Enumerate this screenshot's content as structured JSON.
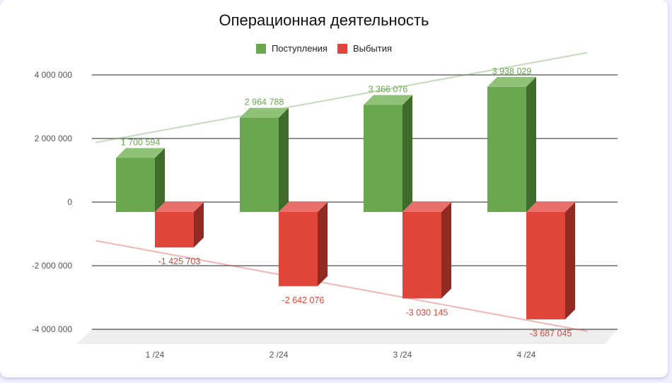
{
  "chart_data": {
    "type": "bar",
    "title": "Операционная деятельность",
    "legend_position": "top",
    "categories": [
      "1 /24",
      "2 /24",
      "3 /24",
      "4 /24"
    ],
    "series": [
      {
        "name": "Поступления",
        "color": "#6aa84f",
        "side_color": "#3f6b2b",
        "top_color": "#8fc276",
        "values": [
          1700594,
          2964788,
          3366076,
          3938029
        ],
        "labels": [
          "1 700 594",
          "2 964 788",
          "3 366 076",
          "3 938 029"
        ]
      },
      {
        "name": "Выбытия",
        "color": "#e0453a",
        "side_color": "#922a24",
        "top_color": "#e9706a",
        "values": [
          -1425703,
          -2642076,
          -3030145,
          -3687045
        ],
        "labels": [
          "-1 425 703",
          "-2 642 076",
          "-3 030 145",
          "-3 687 045"
        ]
      }
    ],
    "y_ticks": [
      {
        "value": 4000000,
        "label": "4 000 000"
      },
      {
        "value": 2000000,
        "label": "2 000 000"
      },
      {
        "value": 0,
        "label": "0"
      },
      {
        "value": -2000000,
        "label": "-2 000 000"
      },
      {
        "value": -4000000,
        "label": "-4 000 000"
      }
    ],
    "ylim": [
      -4000000,
      4000000
    ],
    "grid": true,
    "trendlines": true,
    "xlabel": "",
    "ylabel": ""
  }
}
